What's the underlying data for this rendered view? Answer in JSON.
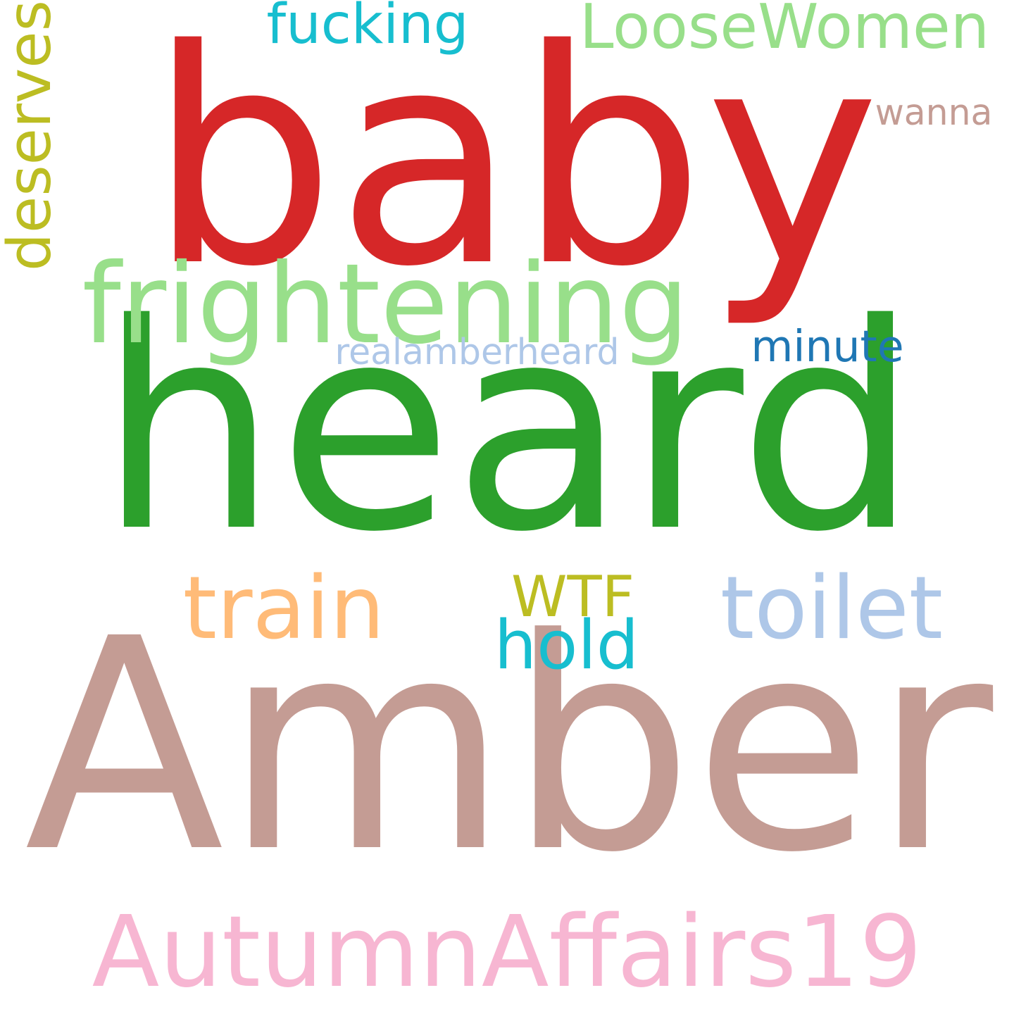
{
  "words": [
    {
      "key": "baby",
      "text": "baby",
      "color": "#d62728"
    },
    {
      "key": "heard",
      "text": "heard",
      "color": "#2ca02c"
    },
    {
      "key": "amber",
      "text": "Amber",
      "color": "#c49c94"
    },
    {
      "key": "autumnaffairs19",
      "text": "AutumnAffairs19",
      "color": "#f7b6d2"
    },
    {
      "key": "frightening",
      "text": "frightening",
      "color": "#98df8a"
    },
    {
      "key": "loosewomen",
      "text": "LooseWomen",
      "color": "#98df8a"
    },
    {
      "key": "fucking",
      "text": "fucking",
      "color": "#17becf"
    },
    {
      "key": "deserves",
      "text": "deserves",
      "color": "#bcbd22"
    },
    {
      "key": "wanna",
      "text": "wanna",
      "color": "#c49c94"
    },
    {
      "key": "minute",
      "text": "minute",
      "color": "#1f77b4"
    },
    {
      "key": "realamberheard",
      "text": "realamberheard",
      "color": "#aec7e8"
    },
    {
      "key": "train",
      "text": "train",
      "color": "#ffbb78"
    },
    {
      "key": "toilet",
      "text": "toilet",
      "color": "#aec7e8"
    },
    {
      "key": "wtf",
      "text": "WTF",
      "color": "#bcbd22"
    },
    {
      "key": "hold",
      "text": "hold",
      "color": "#17becf"
    }
  ]
}
